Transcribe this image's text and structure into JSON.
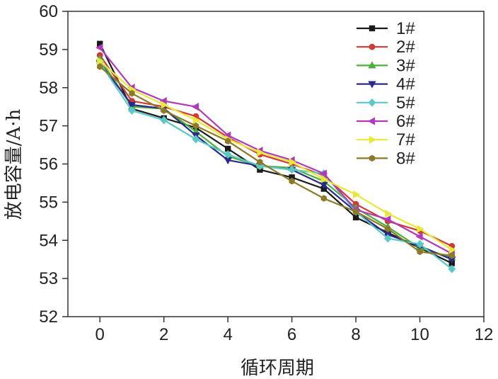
{
  "chart_data": {
    "type": "line",
    "xlabel": "循环周期",
    "ylabel": "放电容量/A·h",
    "xlim": [
      -1,
      12
    ],
    "ylim": [
      52,
      60
    ],
    "xticks": [
      0,
      2,
      4,
      6,
      8,
      10,
      12
    ],
    "yticks": [
      52,
      53,
      54,
      55,
      56,
      57,
      58,
      59,
      60
    ],
    "x": [
      0,
      1,
      2,
      3,
      4,
      5,
      6,
      7,
      8,
      9,
      10,
      11
    ],
    "grid": false,
    "legend_position": "top-right",
    "series": [
      {
        "name": "1#",
        "color": "#1a1a1a",
        "marker": "square",
        "values": [
          59.15,
          57.45,
          57.2,
          56.95,
          56.4,
          55.85,
          55.65,
          55.35,
          54.6,
          54.2,
          53.8,
          53.4
        ]
      },
      {
        "name": "2#",
        "color": "#d03a35",
        "marker": "circle",
        "values": [
          58.85,
          57.65,
          57.5,
          57.25,
          56.7,
          56.25,
          56.0,
          55.7,
          54.95,
          54.5,
          54.25,
          53.85
        ]
      },
      {
        "name": "3#",
        "color": "#4caf3a",
        "marker": "triangle-up",
        "values": [
          58.75,
          57.5,
          57.45,
          56.85,
          56.2,
          55.95,
          55.9,
          55.55,
          54.85,
          54.35,
          53.8,
          53.55
        ]
      },
      {
        "name": "4#",
        "color": "#2b2a8c",
        "marker": "triangle-down",
        "values": [
          58.65,
          57.55,
          57.45,
          56.75,
          56.1,
          55.95,
          55.85,
          55.45,
          54.75,
          54.15,
          53.85,
          53.5
        ]
      },
      {
        "name": "5#",
        "color": "#5cc8c8",
        "marker": "diamond",
        "values": [
          58.65,
          57.4,
          57.15,
          56.65,
          56.25,
          55.95,
          55.85,
          55.75,
          54.75,
          54.05,
          53.9,
          53.25
        ]
      },
      {
        "name": "6#",
        "color": "#b03ab8",
        "marker": "triangle-left",
        "values": [
          59.05,
          58.0,
          57.65,
          57.5,
          56.75,
          56.35,
          56.1,
          55.75,
          54.8,
          54.55,
          54.1,
          53.65
        ]
      },
      {
        "name": "7#",
        "color": "#e8e83a",
        "marker": "triangle-right",
        "values": [
          58.7,
          57.95,
          57.55,
          57.15,
          56.65,
          56.3,
          56.05,
          55.6,
          55.2,
          54.7,
          54.3,
          53.75
        ]
      },
      {
        "name": "8#",
        "color": "#8c7a28",
        "marker": "hexagon",
        "values": [
          58.55,
          57.85,
          57.4,
          57.0,
          56.6,
          56.05,
          55.55,
          55.1,
          54.75,
          54.3,
          53.7,
          53.6
        ]
      }
    ]
  }
}
